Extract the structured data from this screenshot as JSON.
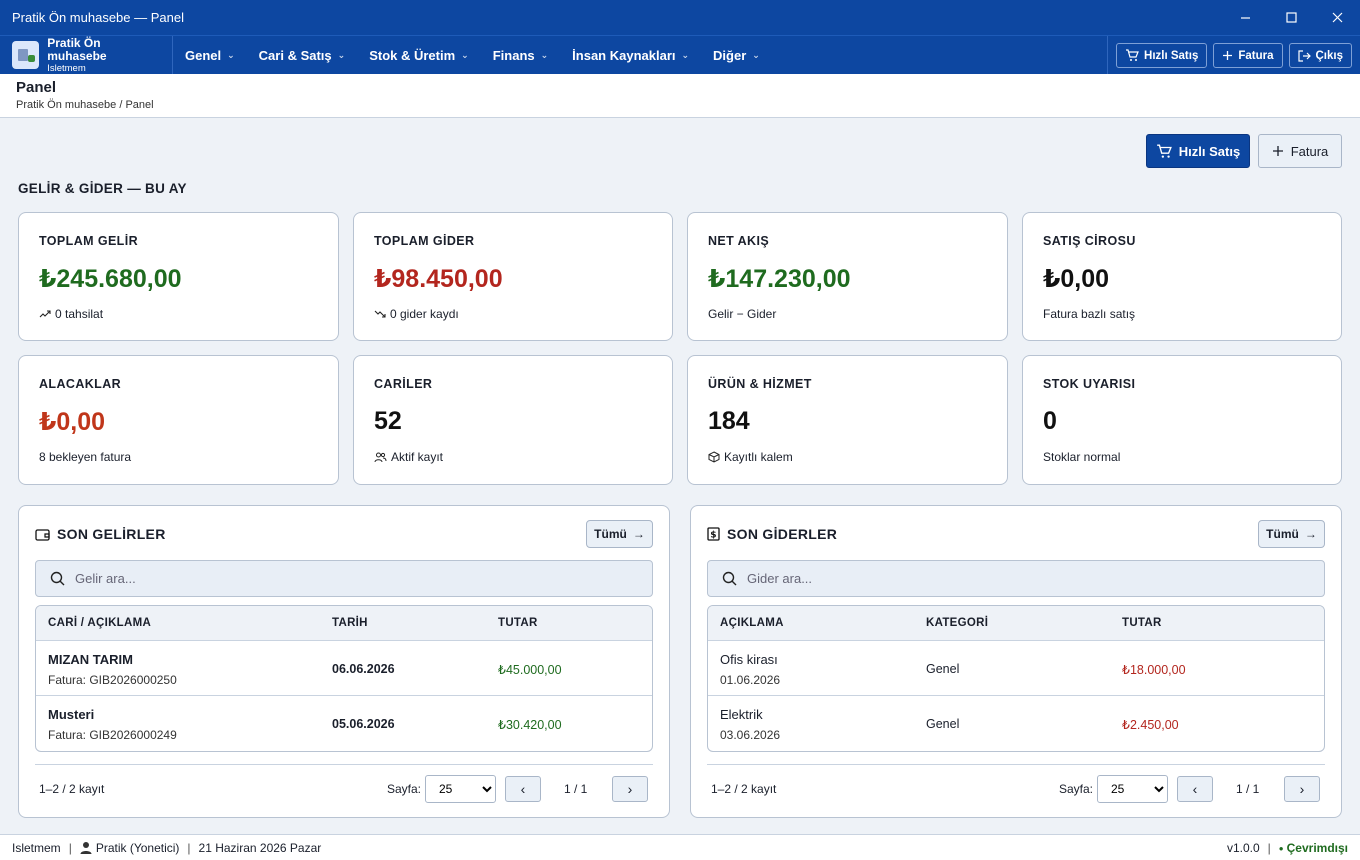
{
  "window": {
    "title": "Pratik Ön muhasebe — Panel"
  },
  "brand": {
    "name": "Pratik Ön muhasebe",
    "company": "Isletmem"
  },
  "menu": {
    "items": [
      {
        "label": "Genel"
      },
      {
        "label": "Cari & Satış"
      },
      {
        "label": "Stok & Üretim"
      },
      {
        "label": "Finans"
      },
      {
        "label": "İnsan Kaynakları"
      },
      {
        "label": "Diğer"
      }
    ]
  },
  "menu_actions": {
    "quick_sale": "Hızlı Satış",
    "invoice": "Fatura",
    "logout": "Çıkış"
  },
  "header": {
    "title": "Panel",
    "breadcrumb": "Pratik Ön muhasebe / Panel"
  },
  "actions": {
    "quick_sale": "Hızlı Satış",
    "invoice": "Fatura"
  },
  "section_title": "GELİR & GİDER — BU AY",
  "cards": [
    {
      "label": "TOPLAM GELİR",
      "value": "₺245.680,00",
      "sub": "0 tahsilat",
      "color": "#1f6b1f"
    },
    {
      "label": "TOPLAM GİDER",
      "value": "₺98.450,00",
      "sub": "0 gider kaydı",
      "color": "#b3261e"
    },
    {
      "label": "NET AKIŞ",
      "value": "₺147.230,00",
      "sub": "Gelir − Gider",
      "color": "#1f6b1f"
    },
    {
      "label": "SATIŞ CİROSU",
      "value": "₺0,00",
      "sub": "Fatura bazlı satış",
      "color": "#111111"
    },
    {
      "label": "ALACAKLAR",
      "value": "₺0,00",
      "sub": "8 bekleyen fatura",
      "color": "#c0361a"
    },
    {
      "label": "CARİLER",
      "value": "52",
      "sub": "Aktif kayıt",
      "color": "#111111"
    },
    {
      "label": "ÜRÜN & HİZMET",
      "value": "184",
      "sub": "Kayıtlı kalem",
      "color": "#111111"
    },
    {
      "label": "STOK UYARISI",
      "value": "0",
      "sub": "Stoklar normal",
      "color": "#111111"
    }
  ],
  "income": {
    "title": "SON GELİRLER",
    "all_label": "Tümü",
    "search_placeholder": "Gelir ara...",
    "columns": [
      "CARİ / AÇIKLAMA",
      "TARİH",
      "TUTAR"
    ],
    "rows": [
      {
        "name": "MIZAN TARIM",
        "detail": "Fatura: GIB2026000250",
        "date": "06.06.2026",
        "amount": "₺45.000,00"
      },
      {
        "name": "Musteri",
        "detail": "Fatura: GIB2026000249",
        "date": "05.06.2026",
        "amount": "₺30.420,00"
      }
    ],
    "count": "1–2 / 2 kayıt",
    "page_label": "Sayfa:",
    "page_size": "25",
    "page": "1 / 1"
  },
  "expense": {
    "title": "SON GİDERLER",
    "all_label": "Tümü",
    "search_placeholder": "Gider ara...",
    "columns": [
      "AÇIKLAMA",
      "KATEGORİ",
      "TUTAR"
    ],
    "rows": [
      {
        "name": "Ofis kirası",
        "detail": "01.06.2026",
        "category": "Genel",
        "amount": "₺18.000,00"
      },
      {
        "name": "Elektrik",
        "detail": "03.06.2026",
        "category": "Genel",
        "amount": "₺2.450,00"
      }
    ],
    "count": "1–2 / 2 kayıt",
    "page_label": "Sayfa:",
    "page_size": "25",
    "page": "1 / 1"
  },
  "status": {
    "company": "Isletmem",
    "user": "Pratik (Yonetici)",
    "date": "21 Haziran 2026 Pazar",
    "version": "v1.0.0",
    "connection": "Çevrimdışı"
  },
  "colors": {
    "primary": "#0d47a1",
    "income": "#1f6b1f",
    "expense": "#b3261e"
  }
}
